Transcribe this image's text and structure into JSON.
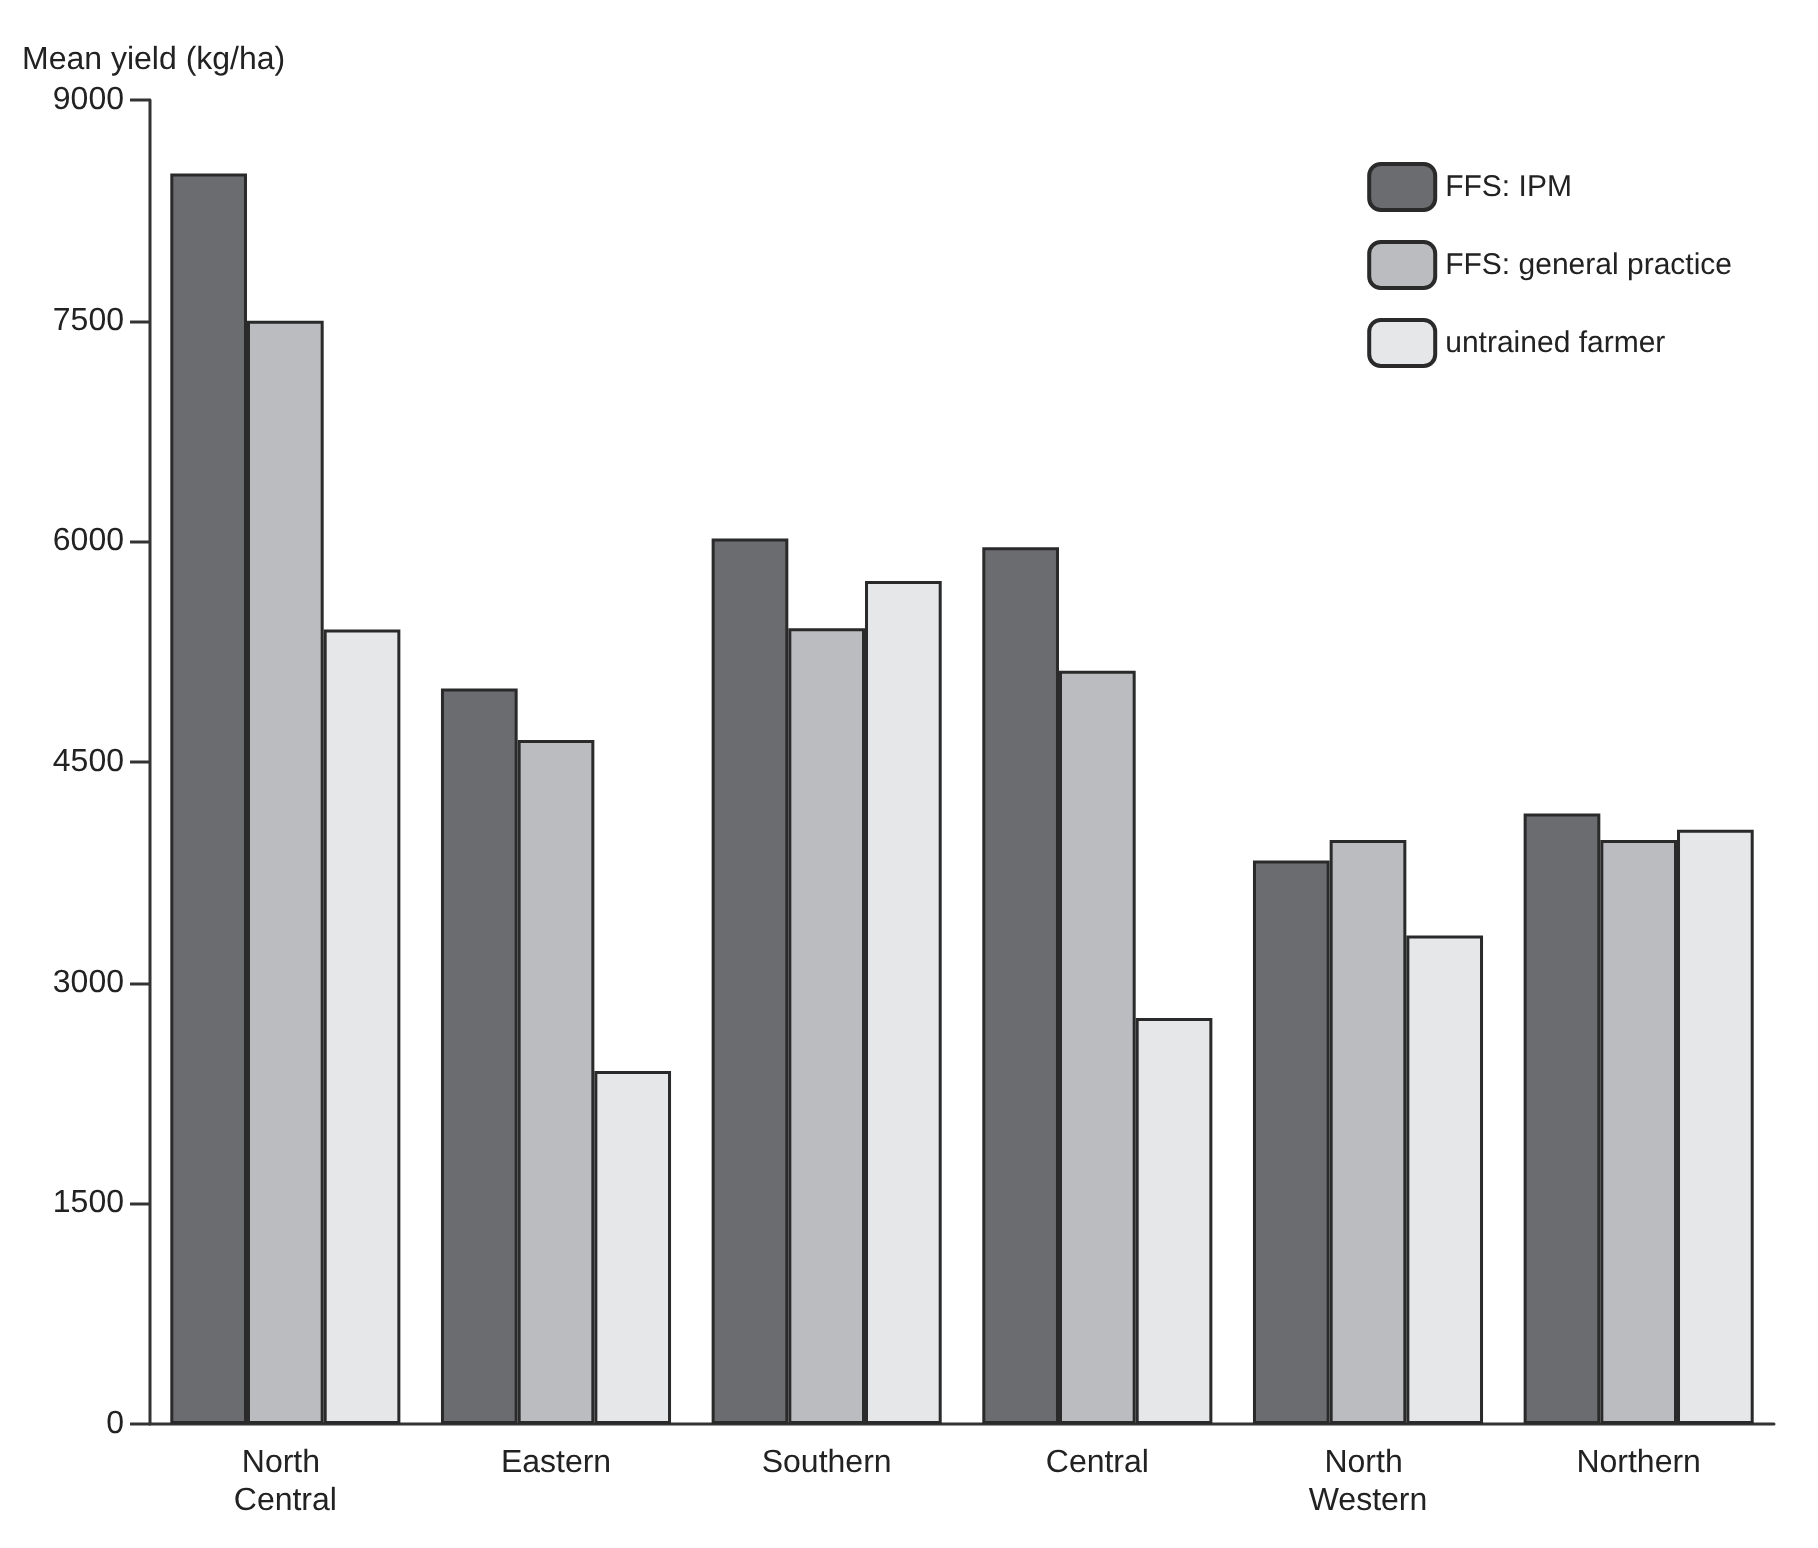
{
  "chart_data": {
    "type": "bar",
    "ylabel": "Mean yield (kg/ha)",
    "categories": [
      "North Central",
      "Eastern",
      "Southern",
      "Central",
      "North Western",
      "Northern"
    ],
    "series": [
      {
        "name": "FFS: IPM",
        "color": "#6b6c70",
        "values": [
          8500,
          5000,
          6020,
          5960,
          3830,
          4150
        ]
      },
      {
        "name": "FFS: general practice",
        "color": "#bbbcc0",
        "values": [
          7500,
          4650,
          5410,
          5120,
          3970,
          3970
        ]
      },
      {
        "name": "untrained farmer",
        "color": "#e6e7e9",
        "values": [
          5400,
          2400,
          5730,
          2760,
          3320,
          4040
        ]
      }
    ],
    "ylim": [
      0,
      9000
    ],
    "yticks": [
      0,
      1500,
      3000,
      4500,
      6000,
      7500,
      9000
    ],
    "grid": false,
    "legend": "top right"
  }
}
